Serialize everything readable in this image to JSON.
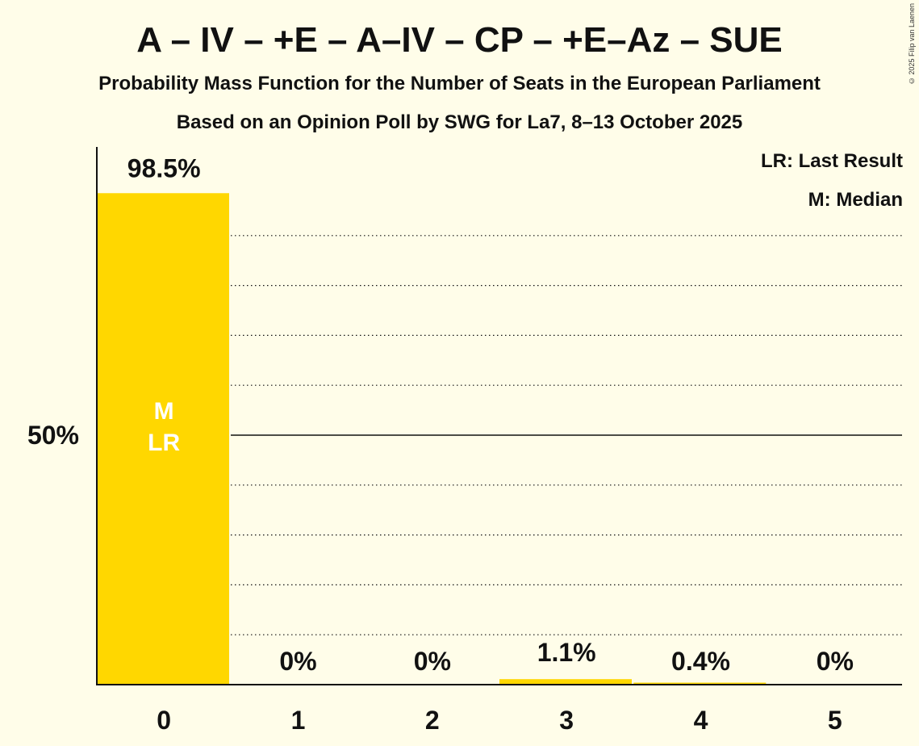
{
  "title": "A – IV – +E – A–IV – CP – +E–Az – SUE",
  "subtitle": "Probability Mass Function for the Number of Seats in the European Parliament",
  "subtitle2": "Based on an Opinion Poll by SWG for La7, 8–13 October 2025",
  "copyright": "© 2025 Filip van Laenen",
  "legend": {
    "last_result": "LR: Last Result",
    "median": "M: Median"
  },
  "colors": {
    "bar": "#FFD700",
    "background": "#FFFDE9",
    "text": "#111111"
  },
  "chart_data": {
    "type": "bar",
    "categories": [
      "0",
      "1",
      "2",
      "3",
      "4",
      "5"
    ],
    "values": [
      98.5,
      0,
      0,
      1.1,
      0.4,
      0
    ],
    "value_labels": [
      "98.5%",
      "0%",
      "0%",
      "1.1%",
      "0.4%",
      "0%"
    ],
    "ylim": [
      0,
      100
    ],
    "ytick_labels": [
      {
        "value": 50,
        "label": "50%"
      }
    ],
    "gridlines": [
      10,
      20,
      30,
      40,
      50,
      60,
      70,
      80,
      90
    ],
    "solid_gridline": 50,
    "median_index": 0,
    "last_result_index": 0,
    "bar_markers": {
      "median": "M",
      "last_result": "LR"
    },
    "xlabel": "",
    "ylabel": ""
  }
}
